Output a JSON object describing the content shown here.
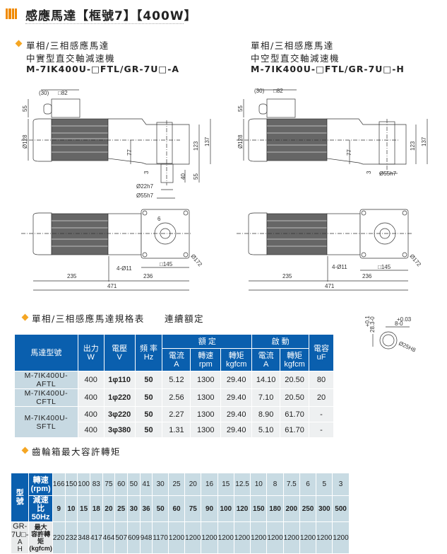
{
  "header": {
    "title": "感應馬達【框號7】【400W】",
    "accent": "#f08a00"
  },
  "left": {
    "line1": "單相/三相感應馬達",
    "line2": "中實型直交軸減速機",
    "model": "M-7IK400U-□FTL/GR-7U□-A",
    "dims": {
      "d30": "(30)",
      "sq82": "□82",
      "h55": "55",
      "dia128": "Ø128",
      "h77": "77",
      "h123": "123",
      "h137": "137",
      "h3": "3",
      "h40": "40",
      "h55b": "55",
      "dia22": "Ø22h7",
      "dia55": "Ø55h7",
      "holes": "4-Ø11",
      "sq145": "□145",
      "dia172": "Ø172",
      "l235": "235",
      "l236": "236",
      "l471": "471",
      "key6": "6"
    }
  },
  "right": {
    "line1": "單相/三相感應馬達",
    "line2": "中空型直交軸減速機",
    "model": "M-7IK400U-□FTL/GR-7U□-H",
    "dims": {
      "d30": "(30)",
      "sq82": "□82",
      "h55": "55",
      "dia128": "Ø128",
      "h77": "77",
      "h123": "123",
      "h137": "137",
      "h3": "3",
      "dia55": "Ø55h7",
      "holes": "4-Ø11",
      "sq145": "□145",
      "dia172": "Ø172",
      "l235": "235",
      "l236": "236",
      "l471": "471"
    }
  },
  "keyway": {
    "tol1": "+0.1",
    "dim1": "28.3-0",
    "tol2": "+0.03",
    "dim2": "8-0",
    "bore": "Ø25H8"
  },
  "spec": {
    "heading": "單相/三相感應馬達規格表",
    "subheading": "連續額定",
    "headers": {
      "model": "馬達型號",
      "power": [
        "出力",
        "W"
      ],
      "voltage": [
        "電壓",
        "V"
      ],
      "freq": [
        "頻 率",
        "Hz"
      ],
      "rated": "額 定",
      "start": "啟 動",
      "cap": [
        "電容",
        "uF"
      ],
      "current": [
        "電流",
        "A"
      ],
      "speed": [
        "轉速",
        "rpm"
      ],
      "torque": [
        "轉矩",
        "kgfcm"
      ]
    },
    "rows": [
      {
        "model": "M-7IK400U-AFTL",
        "power": "400",
        "voltage": "1φ110",
        "freq": "50",
        "r_current": "5.12",
        "r_speed": "1300",
        "r_torque": "29.40",
        "s_current": "14.10",
        "s_torque": "20.50",
        "cap": "80"
      },
      {
        "model": "M-7IK400U-CFTL",
        "power": "400",
        "voltage": "1φ220",
        "freq": "50",
        "r_current": "2.56",
        "r_speed": "1300",
        "r_torque": "29.40",
        "s_current": "7.10",
        "s_torque": "20.50",
        "cap": "20"
      },
      {
        "model": "M-7IK400U-SFTL",
        "power": "400",
        "voltage": "3φ220",
        "freq": "50",
        "r_current": "2.27",
        "r_speed": "1300",
        "r_torque": "29.40",
        "s_current": "8.90",
        "s_torque": "61.70",
        "cap": "-"
      },
      {
        "model": "",
        "power": "400",
        "voltage": "3φ380",
        "freq": "50",
        "r_current": "1.31",
        "r_speed": "1300",
        "r_torque": "29.40",
        "s_current": "5.10",
        "s_torque": "61.70",
        "cap": "-"
      }
    ]
  },
  "gear": {
    "heading": "齒輪箱最大容許轉矩",
    "type_label": "型 號",
    "speed_label": [
      "轉速",
      "(rpm)"
    ],
    "ratio_label": [
      "減速比",
      "50Hz"
    ],
    "model": "GR-7U□-",
    "model_suffix": [
      "A",
      "H"
    ],
    "torque_label": [
      "最大",
      "容許轉矩",
      "(kgfcm)"
    ],
    "speeds": [
      "166",
      "150",
      "100",
      "83",
      "75",
      "60",
      "50",
      "41",
      "30",
      "25",
      "20",
      "16",
      "15",
      "12.5",
      "10",
      "8",
      "7.5",
      "6",
      "5",
      "3"
    ],
    "ratios": [
      "9",
      "10",
      "15",
      "18",
      "20",
      "25",
      "30",
      "36",
      "50",
      "60",
      "75",
      "90",
      "100",
      "120",
      "150",
      "180",
      "200",
      "250",
      "300",
      "500"
    ],
    "torques": [
      "220",
      "232",
      "348",
      "417",
      "464",
      "507",
      "609",
      "948",
      "1170",
      "1200",
      "1200",
      "1200",
      "1200",
      "1200",
      "1200",
      "1200",
      "1200",
      "1200",
      "1200",
      "1200"
    ]
  }
}
